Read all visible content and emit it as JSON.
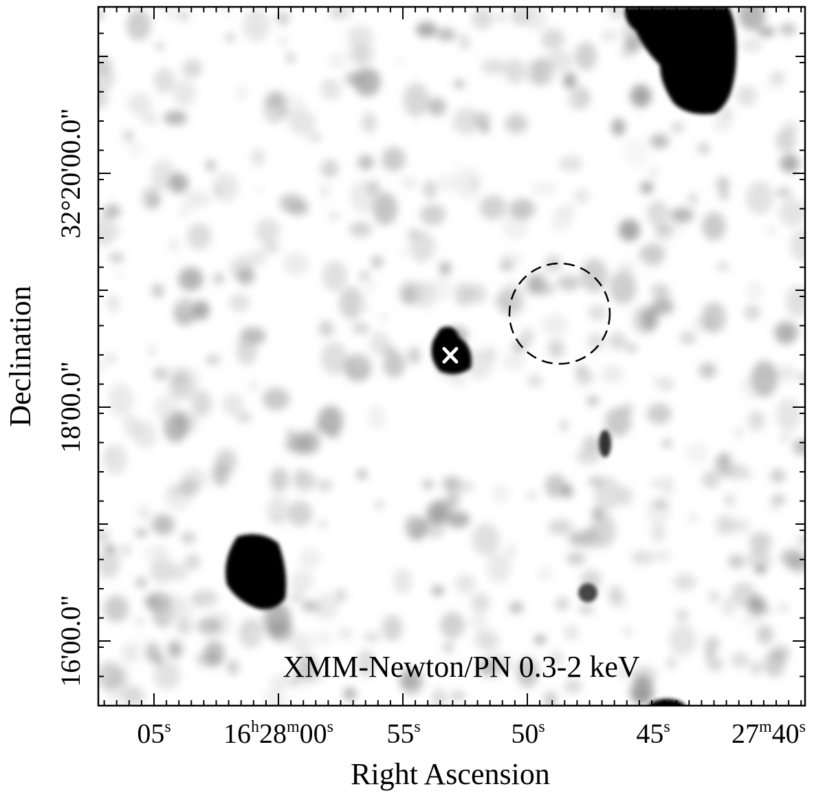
{
  "figure": {
    "band_label": "XMM-Newton/PN 0.3-2 keV",
    "x_axis_title": "Right Ascension",
    "y_axis_title": "Declination",
    "ra_ticks": [
      {
        "main": "05",
        "sup": "s"
      },
      {
        "main": "16",
        "sup": "h",
        "main2": "28",
        "sup2": "m",
        "main3": "00",
        "sup3": "s"
      },
      {
        "main": "55",
        "sup": "s"
      },
      {
        "main": "50",
        "sup": "s"
      },
      {
        "main": "45",
        "sup": "s"
      },
      {
        "main": "27",
        "sup": "m",
        "main2": "40",
        "sup2": "s"
      }
    ],
    "dec_ticks": [
      "16'00.0\"",
      "18'00.0\"",
      "32°20'00.0\""
    ],
    "markers": {
      "source_cross": "white-x-marker",
      "extraction_circle": "dashed-circle"
    },
    "colormap": {
      "background": "#ffffff",
      "sources": "#000000",
      "marker": "#ffffff"
    }
  }
}
